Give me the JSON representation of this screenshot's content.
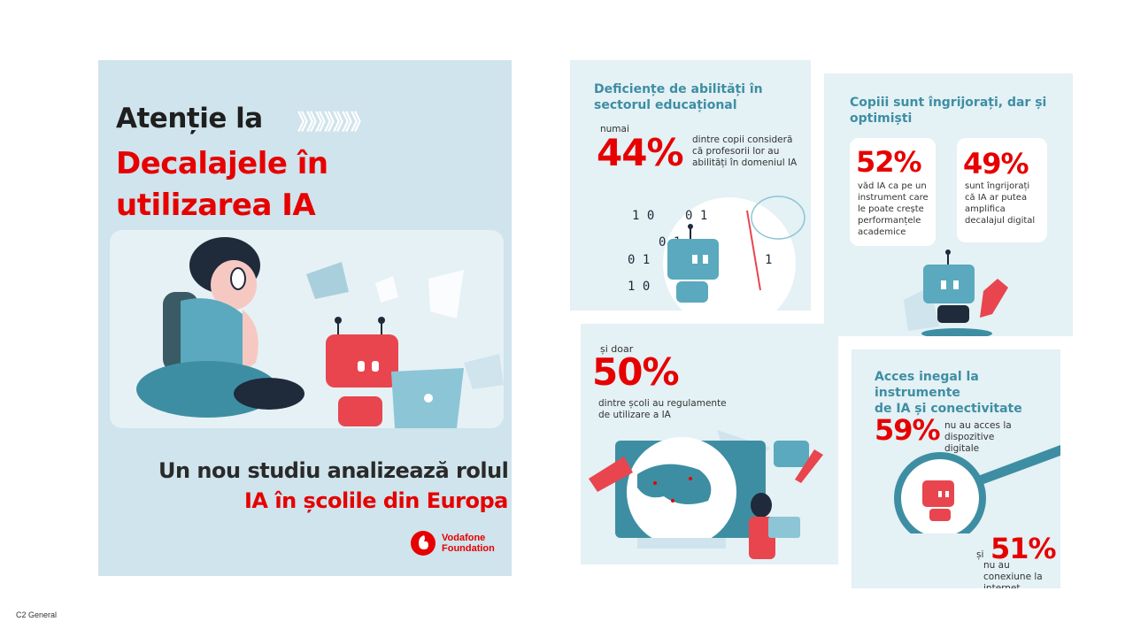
{
  "poster": {
    "headline_line1": "Atenție la",
    "headline_red_line1": "Decalajele în",
    "headline_red_line2": "utilizarea IA",
    "chevrons": "》》》》》》》",
    "subtitle_line1": "Un nou studiu analizează rolul",
    "subtitle_line2": "IA în școlile din Europa",
    "logo_line1": "Vodafone",
    "logo_line2": "Foundation"
  },
  "card1": {
    "title_line1": "Deficiențe de abilități în",
    "title_line2": "sectorul educațional",
    "prefix": "numai",
    "percent": "44%",
    "desc_line1": "dintre copii consideră",
    "desc_line2": "că profesorii lor au",
    "desc_line3": "abilități în domeniul IA"
  },
  "card2": {
    "title_line1": "Copiii sunt îngrijorați, dar și",
    "title_line2": "optimiști",
    "stat1_percent": "52%",
    "stat1_lines": [
      "văd IA ca pe un",
      "instrument care",
      "le poate crește",
      "performanțele",
      "academice"
    ],
    "stat2_percent": "49%",
    "stat2_lines": [
      "sunt îngrijorați",
      "că IA ar putea",
      "amplifica",
      "decalajul digital"
    ]
  },
  "card3": {
    "prefix": "și doar",
    "percent": "50%",
    "desc_line1": "dintre școli au regulamente",
    "desc_line2": "de utilizare a IA"
  },
  "card4": {
    "title_line1": "Acces inegal la instrumente",
    "title_line2": "de IA și conectivitate",
    "stat1_percent": "59%",
    "stat1_line1": "nu au acces la dispozitive",
    "stat1_line2": "digitale",
    "connector": "și",
    "stat2_percent": "51%",
    "stat2_line1": "nu au conexiune la",
    "stat2_line2": "internet"
  },
  "caption": "C2 General",
  "colors": {
    "red": "#e60000",
    "teal": "#3e8ea3",
    "bg_blue": "#cfe4ec"
  }
}
